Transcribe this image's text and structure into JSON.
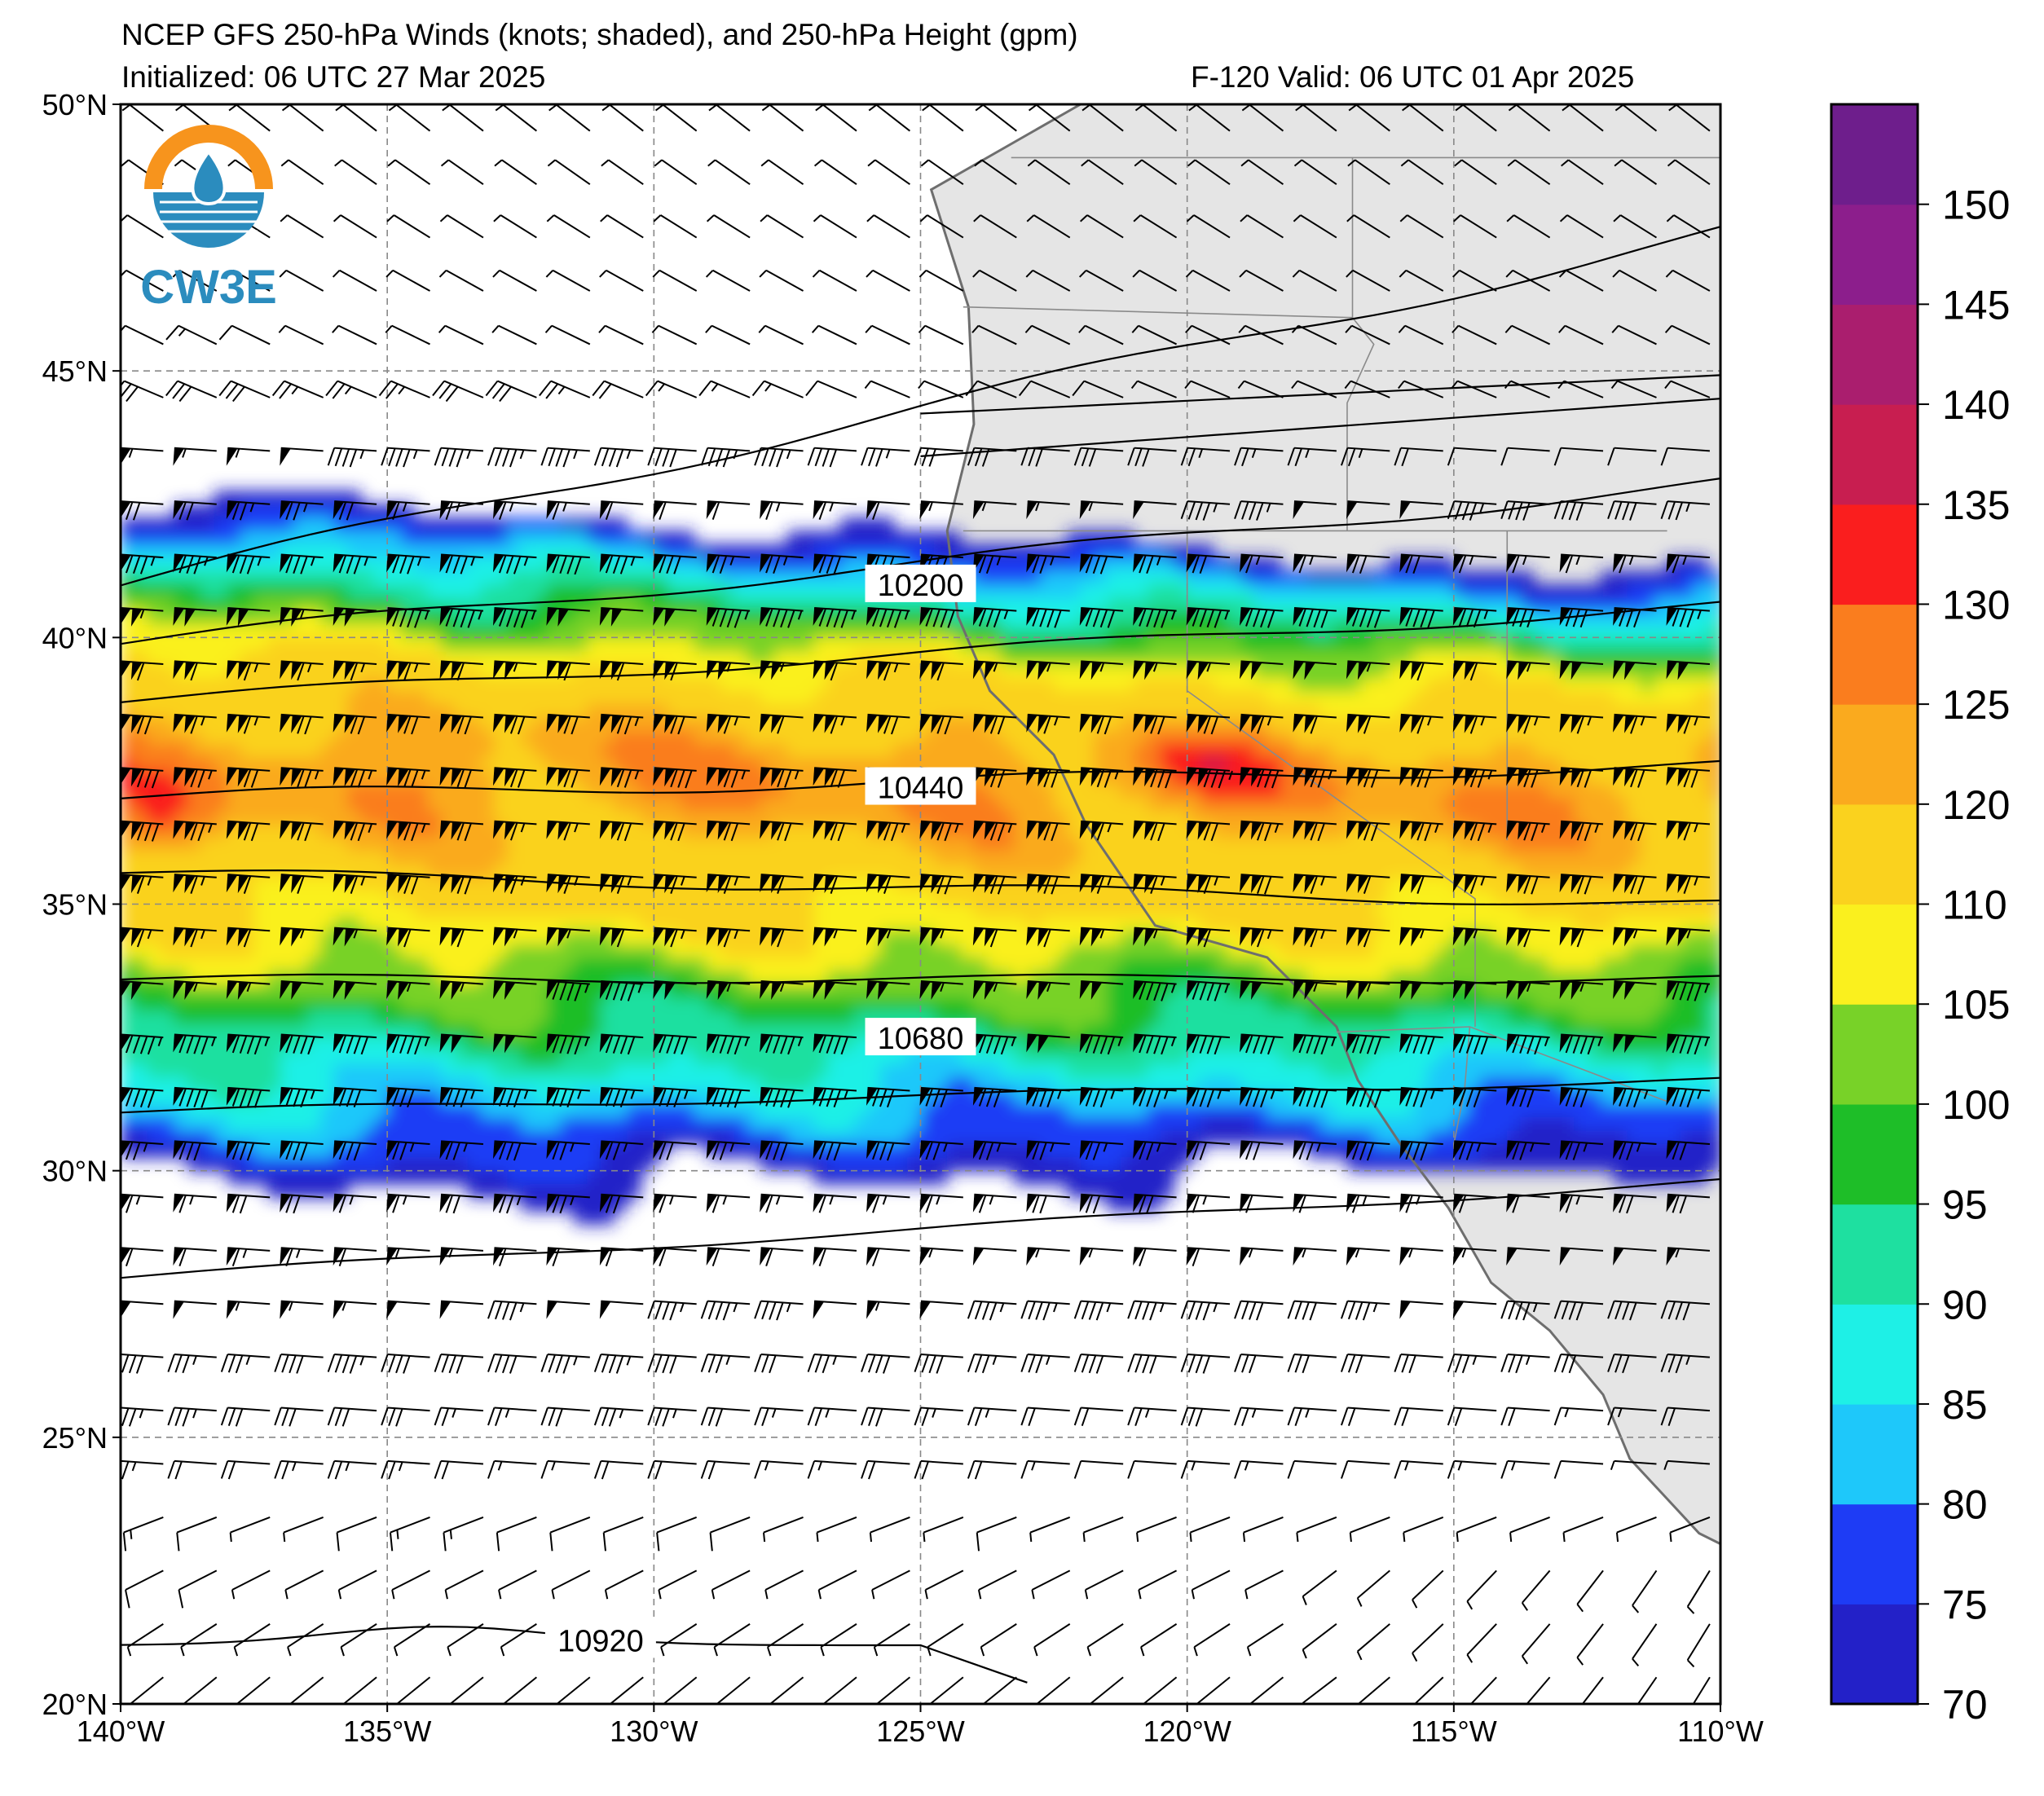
{
  "header": {
    "title": "NCEP GFS 250-hPa Winds (knots; shaded), and 250-hPa Height (gpm)",
    "initialized": "Initialized: 06 UTC 27 Mar 2025",
    "valid": "F-120  Valid: 06 UTC 01 Apr 2025"
  },
  "logo": {
    "text": "CW3E",
    "colors": {
      "orange": "#f7941d",
      "blue": "#2b8cbe"
    }
  },
  "map": {
    "lon_range": [
      -140,
      -110
    ],
    "lat_range": [
      20,
      50
    ],
    "lon_ticks": [
      {
        "value": -140,
        "label": "140°W"
      },
      {
        "value": -135,
        "label": "135°W"
      },
      {
        "value": -130,
        "label": "130°W"
      },
      {
        "value": -125,
        "label": "125°W"
      },
      {
        "value": -120,
        "label": "120°W"
      },
      {
        "value": -115,
        "label": "115°W"
      },
      {
        "value": -110,
        "label": "110°W"
      }
    ],
    "lat_ticks": [
      {
        "value": 50,
        "label": "50°N"
      },
      {
        "value": 45,
        "label": "45°N"
      },
      {
        "value": 40,
        "label": "40°N"
      },
      {
        "value": 35,
        "label": "35°N"
      },
      {
        "value": 30,
        "label": "30°N"
      },
      {
        "value": 25,
        "label": "25°N"
      },
      {
        "value": 20,
        "label": "20°N"
      }
    ],
    "land_color": "#e5e5e5",
    "coast_color": "#6e6e6e",
    "grid_style": "dashed gray",
    "height_contour_labels": [
      {
        "label": "10200",
        "lon": -125,
        "lat": 41.0
      },
      {
        "label": "10440",
        "lon": -125,
        "lat": 37.2
      },
      {
        "label": "10680",
        "lon": -125,
        "lat": 32.5
      },
      {
        "label": "10920",
        "lon": -131,
        "lat": 21.2
      }
    ]
  },
  "colorbar": {
    "labels": [
      "70",
      "75",
      "80",
      "85",
      "90",
      "95",
      "100",
      "105",
      "110",
      "120",
      "125",
      "130",
      "135",
      "140",
      "145",
      "150"
    ],
    "colors": [
      "#2321c8",
      "#1e3cf5",
      "#1ec8fa",
      "#1ef0e6",
      "#1ee0a0",
      "#1ebe28",
      "#78d228",
      "#faf01e",
      "#fad21e",
      "#faaa1e",
      "#fa7d1e",
      "#fa1e1e",
      "#c81e50",
      "#aa1e6e",
      "#8c1e8c",
      "#6e1e8c"
    ]
  },
  "wind_field": {
    "units": "knots",
    "jet_axis_lat": 37.3,
    "jet_peak_speed": 130
  }
}
